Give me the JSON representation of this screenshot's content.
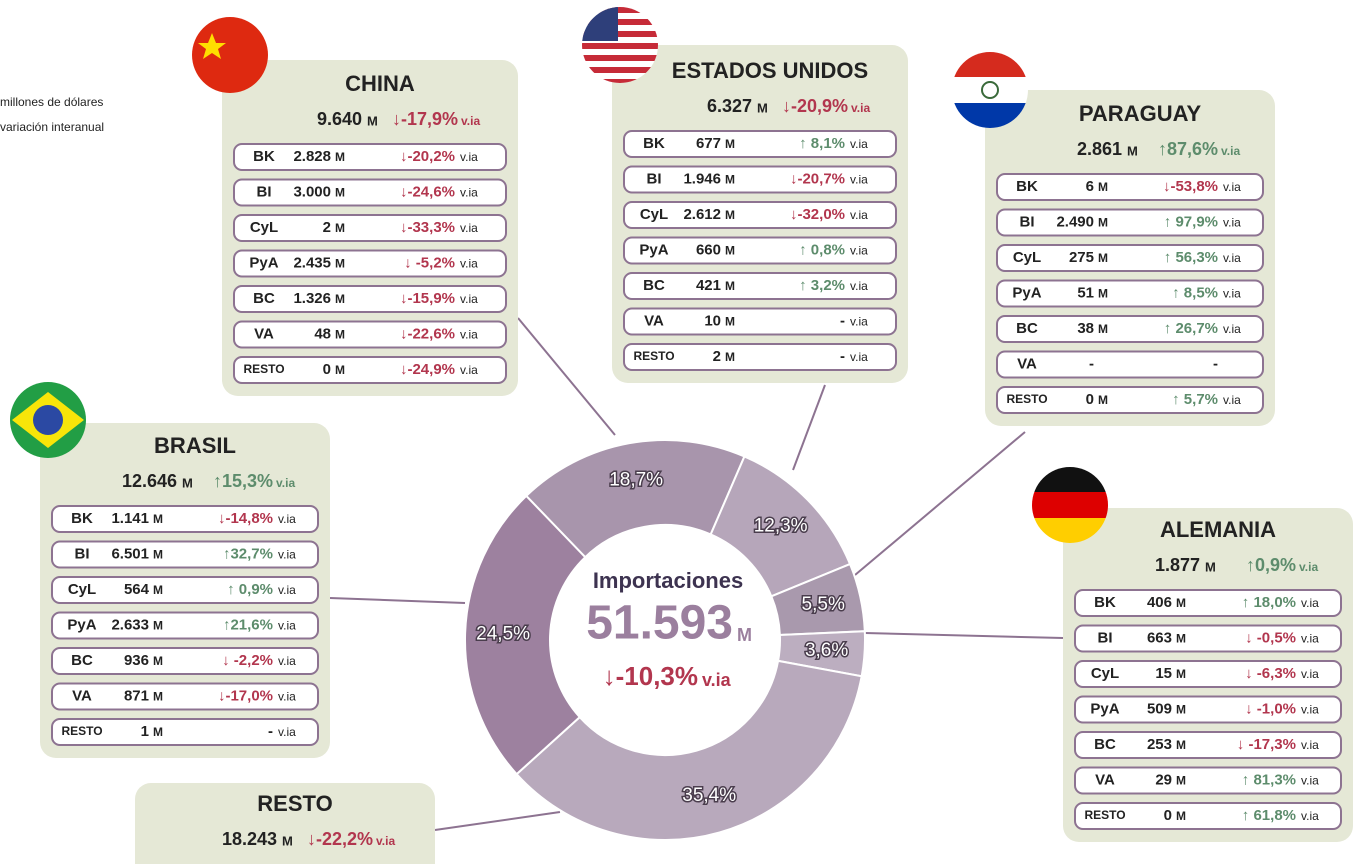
{
  "legend": {
    "unit": "millones de dólares",
    "change": "variación interanual"
  },
  "chart_data": {
    "type": "pie",
    "values": [
      18.7,
      12.3,
      5.5,
      3.6,
      35.4,
      24.5
    ],
    "value_labels": [
      "18,7%",
      "12,3%",
      "5,5%",
      "3,6%",
      "35,4%",
      "24,5%"
    ],
    "colors": [
      "#a895ac",
      "#b6a6ba",
      "#a999ad",
      "#bcaec0",
      "#b8a9bc",
      "#9d819f"
    ],
    "center": {
      "title": "Importaciones",
      "value": "51.593",
      "unit": "M",
      "change": "↓-10,3%",
      "suffix": "v.ia"
    }
  },
  "panels": [
    {
      "name": "CHINA",
      "total": "9.640",
      "unit": "M",
      "change": "↓-17,9%",
      "suffix": "v.ia",
      "rows": [
        {
          "code": "BK",
          "value": "2.828",
          "unit": "M",
          "change": "↓-20,2%",
          "suffix": "v.ia"
        },
        {
          "code": "BI",
          "value": "3.000",
          "unit": "M",
          "change": "↓-24,6%",
          "suffix": "v.ia"
        },
        {
          "code": "CyL",
          "value": "2",
          "unit": "M",
          "change": "↓-33,3%",
          "suffix": "v.ia"
        },
        {
          "code": "PyA",
          "value": "2.435",
          "unit": "M",
          "change": "↓ -5,2%",
          "suffix": "v.ia"
        },
        {
          "code": "BC",
          "value": "1.326",
          "unit": "M",
          "change": "↓-15,9%",
          "suffix": "v.ia"
        },
        {
          "code": "VA",
          "value": "48",
          "unit": "M",
          "change": "↓-22,6%",
          "suffix": "v.ia"
        },
        {
          "code": "RESTO",
          "value": "0",
          "unit": "M",
          "change": "↓-24,9%",
          "suffix": "v.ia"
        }
      ]
    },
    {
      "name": "ESTADOS UNIDOS",
      "total": "6.327",
      "unit": "M",
      "change": "↓-20,9%",
      "suffix": "v.ia",
      "rows": [
        {
          "code": "BK",
          "value": "677",
          "unit": "M",
          "change": "↑ 8,1%",
          "suffix": "v.ia"
        },
        {
          "code": "BI",
          "value": "1.946",
          "unit": "M",
          "change": "↓-20,7%",
          "suffix": "v.ia"
        },
        {
          "code": "CyL",
          "value": "2.612",
          "unit": "M",
          "change": "↓-32,0%",
          "suffix": "v.ia"
        },
        {
          "code": "PyA",
          "value": "660",
          "unit": "M",
          "change": "↑ 0,8%",
          "suffix": "v.ia"
        },
        {
          "code": "BC",
          "value": "421",
          "unit": "M",
          "change": "↑ 3,2%",
          "suffix": "v.ia"
        },
        {
          "code": "VA",
          "value": "10",
          "unit": "M",
          "change": "-",
          "suffix": "v.ia"
        },
        {
          "code": "RESTO",
          "value": "2",
          "unit": "M",
          "change": "-",
          "suffix": "v.ia"
        }
      ]
    },
    {
      "name": "PARAGUAY",
      "total": "2.861",
      "unit": "M",
      "change": "↑87,6%",
      "suffix": "v.ia",
      "rows": [
        {
          "code": "BK",
          "value": "6",
          "unit": "M",
          "change": "↓-53,8%",
          "suffix": "v.ia"
        },
        {
          "code": "BI",
          "value": "2.490",
          "unit": "M",
          "change": "↑ 97,9%",
          "suffix": "v.ia"
        },
        {
          "code": "CyL",
          "value": "275",
          "unit": "M",
          "change": "↑ 56,3%",
          "suffix": "v.ia"
        },
        {
          "code": "PyA",
          "value": "51",
          "unit": "M",
          "change": "↑ 8,5%",
          "suffix": "v.ia"
        },
        {
          "code": "BC",
          "value": "38",
          "unit": "M",
          "change": "↑ 26,7%",
          "suffix": "v.ia"
        },
        {
          "code": "VA",
          "value": "-",
          "change": "-"
        },
        {
          "code": "RESTO",
          "value": "0",
          "unit": "M",
          "change": "↑ 5,7%",
          "suffix": "v.ia"
        }
      ]
    },
    {
      "name": "BRASIL",
      "total": "12.646",
      "unit": "M",
      "change": "↑15,3%",
      "suffix": "v.ia",
      "rows": [
        {
          "code": "BK",
          "value": "1.141",
          "unit": "M",
          "change": "↓-14,8%",
          "suffix": "v.ia"
        },
        {
          "code": "BI",
          "value": "6.501",
          "unit": "M",
          "change": "↑32,7%",
          "suffix": "v.ia"
        },
        {
          "code": "CyL",
          "value": "564",
          "unit": "M",
          "change": "↑ 0,9%",
          "suffix": "v.ia"
        },
        {
          "code": "PyA",
          "value": "2.633",
          "unit": "M",
          "change": "↑21,6%",
          "suffix": "v.ia"
        },
        {
          "code": "BC",
          "value": "936",
          "unit": "M",
          "change": "↓ -2,2%",
          "suffix": "v.ia"
        },
        {
          "code": "VA",
          "value": "871",
          "unit": "M",
          "change": "↓-17,0%",
          "suffix": "v.ia"
        },
        {
          "code": "RESTO",
          "value": "1",
          "unit": "M",
          "change": "-",
          "suffix": "v.ia"
        }
      ]
    },
    {
      "name": "ALEMANIA",
      "total": "1.877",
      "unit": "M",
      "change": "↑0,9%",
      "suffix": "v.ia",
      "rows": [
        {
          "code": "BK",
          "value": "406",
          "unit": "M",
          "change": "↑ 18,0%",
          "suffix": "v.ia"
        },
        {
          "code": "BI",
          "value": "663",
          "unit": "M",
          "change": "↓ -0,5%",
          "suffix": "v.ia"
        },
        {
          "code": "CyL",
          "value": "15",
          "unit": "M",
          "change": "↓ -6,3%",
          "suffix": "v.ia"
        },
        {
          "code": "PyA",
          "value": "509",
          "unit": "M",
          "change": "↓ -1,0%",
          "suffix": "v.ia"
        },
        {
          "code": "BC",
          "value": "253",
          "unit": "M",
          "change": "↓ -17,3%",
          "suffix": "v.ia"
        },
        {
          "code": "VA",
          "value": "29",
          "unit": "M",
          "change": "↑ 81,3%",
          "suffix": "v.ia"
        },
        {
          "code": "RESTO",
          "value": "0",
          "unit": "M",
          "change": "↑ 61,8%",
          "suffix": "v.ia"
        }
      ]
    },
    {
      "name": "RESTO",
      "total": "18.243",
      "unit": "M",
      "change": "↓-22,2%",
      "suffix": "v.ia",
      "rows": []
    }
  ]
}
